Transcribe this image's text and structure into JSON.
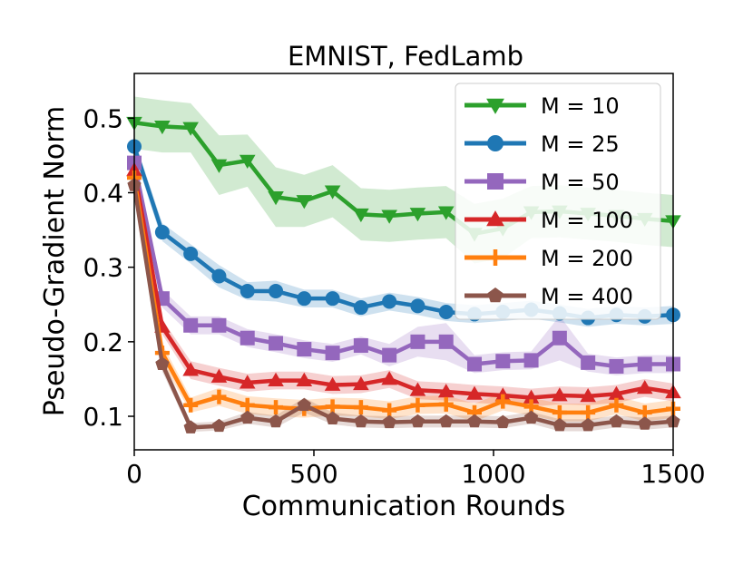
{
  "chart_data": {
    "type": "line",
    "title": "EMNIST, FedLamb",
    "xlabel": "Communication Rounds",
    "ylabel": "Pseudo-Gradient Norm",
    "xlim": [
      0,
      1500
    ],
    "ylim": [
      0.055,
      0.56
    ],
    "xticks": [
      0,
      500,
      1000,
      1500
    ],
    "yticks": [
      0.1,
      0.2,
      0.3,
      0.4,
      0.5
    ],
    "grid": false,
    "legend_position": "top-right",
    "x": [
      0,
      78,
      157,
      236,
      315,
      394,
      473,
      552,
      631,
      710,
      789,
      868,
      947,
      1026,
      1105,
      1184,
      1263,
      1342,
      1421,
      1500
    ],
    "series": [
      {
        "name": "M = 10",
        "color": "#2ca02c",
        "marker": "triangle-down",
        "values": [
          0.494,
          0.489,
          0.487,
          0.437,
          0.443,
          0.394,
          0.389,
          0.402,
          0.371,
          0.369,
          0.372,
          0.374,
          0.345,
          0.352,
          0.374,
          0.375,
          0.372,
          0.369,
          0.365,
          0.362
        ],
        "band": [
          0.035,
          0.035,
          0.033,
          0.04,
          0.035,
          0.04,
          0.035,
          0.035,
          0.035,
          0.035,
          0.035,
          0.035,
          0.04,
          0.04,
          0.035,
          0.035,
          0.035,
          0.035,
          0.035,
          0.035
        ]
      },
      {
        "name": "M = 25",
        "color": "#1f77b4",
        "marker": "circle",
        "values": [
          0.462,
          0.347,
          0.318,
          0.288,
          0.268,
          0.268,
          0.258,
          0.258,
          0.246,
          0.254,
          0.248,
          0.24,
          0.237,
          0.24,
          0.243,
          0.238,
          0.232,
          0.236,
          0.234,
          0.236
        ],
        "band": [
          0.01,
          0.012,
          0.013,
          0.015,
          0.012,
          0.014,
          0.012,
          0.012,
          0.012,
          0.012,
          0.012,
          0.012,
          0.012,
          0.012,
          0.012,
          0.012,
          0.012,
          0.012,
          0.012,
          0.012
        ]
      },
      {
        "name": "M = 50",
        "color": "#9467bd",
        "marker": "square",
        "values": [
          0.44,
          0.258,
          0.222,
          0.222,
          0.205,
          0.198,
          0.19,
          0.185,
          0.195,
          0.182,
          0.2,
          0.2,
          0.17,
          0.174,
          0.175,
          0.205,
          0.172,
          0.167,
          0.17,
          0.17
        ],
        "band": [
          0.01,
          0.012,
          0.012,
          0.012,
          0.012,
          0.012,
          0.012,
          0.012,
          0.012,
          0.015,
          0.02,
          0.025,
          0.012,
          0.012,
          0.012,
          0.03,
          0.012,
          0.012,
          0.012,
          0.012
        ]
      },
      {
        "name": "M = 100",
        "color": "#d62728",
        "marker": "triangle-up",
        "values": [
          0.43,
          0.22,
          0.162,
          0.153,
          0.145,
          0.148,
          0.148,
          0.142,
          0.143,
          0.15,
          0.135,
          0.133,
          0.13,
          0.128,
          0.125,
          0.128,
          0.127,
          0.13,
          0.138,
          0.132
        ],
        "band": [
          0.01,
          0.01,
          0.012,
          0.012,
          0.012,
          0.012,
          0.012,
          0.012,
          0.012,
          0.012,
          0.012,
          0.012,
          0.012,
          0.012,
          0.012,
          0.012,
          0.012,
          0.012,
          0.012,
          0.012
        ]
      },
      {
        "name": "M = 200",
        "color": "#ff7f0e",
        "marker": "plus",
        "values": [
          0.42,
          0.185,
          0.115,
          0.126,
          0.115,
          0.112,
          0.11,
          0.113,
          0.112,
          0.108,
          0.115,
          0.116,
          0.105,
          0.12,
          0.113,
          0.105,
          0.105,
          0.115,
          0.105,
          0.11
        ],
        "band": [
          0.01,
          0.012,
          0.01,
          0.012,
          0.012,
          0.012,
          0.012,
          0.012,
          0.012,
          0.012,
          0.012,
          0.012,
          0.012,
          0.012,
          0.012,
          0.012,
          0.012,
          0.012,
          0.012,
          0.012
        ]
      },
      {
        "name": "M = 400",
        "color": "#8c564b",
        "marker": "pentagon",
        "values": [
          0.41,
          0.17,
          0.085,
          0.087,
          0.098,
          0.093,
          0.115,
          0.097,
          0.093,
          0.092,
          0.093,
          0.093,
          0.093,
          0.092,
          0.098,
          0.088,
          0.088,
          0.093,
          0.09,
          0.093
        ],
        "band": [
          0.01,
          0.01,
          0.006,
          0.006,
          0.008,
          0.008,
          0.01,
          0.008,
          0.008,
          0.008,
          0.008,
          0.008,
          0.008,
          0.008,
          0.008,
          0.008,
          0.008,
          0.008,
          0.008,
          0.008
        ]
      }
    ]
  }
}
